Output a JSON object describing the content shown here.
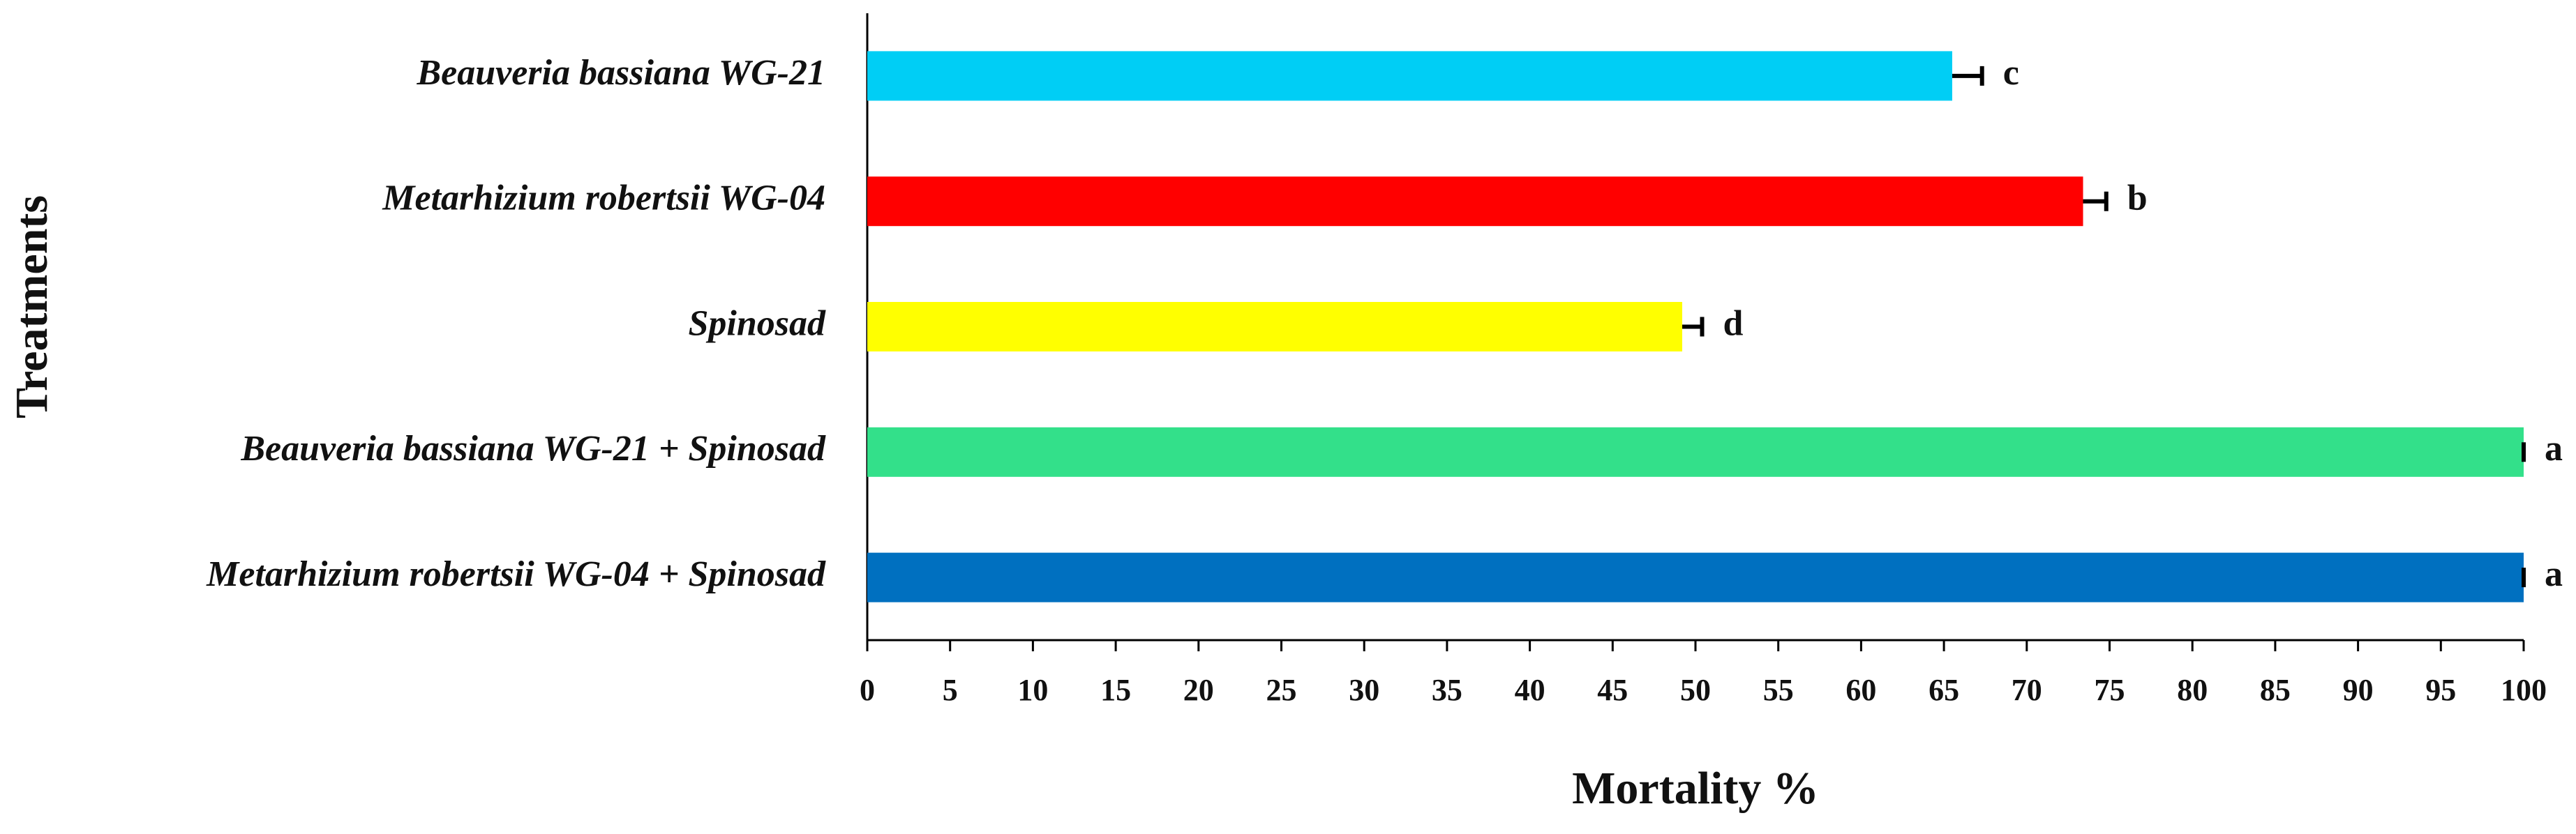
{
  "chart_data": {
    "type": "bar",
    "orientation": "horizontal",
    "categories": [
      "Beauveria bassiana WG-21",
      "Metarhizium robertsii WG-04",
      "Spinosad",
      "Beauveria bassiana WG-21 + Spinosad",
      "Metarhizium robertsii WG-04 + Spinosad"
    ],
    "values": [
      65.5,
      73.4,
      49.2,
      100,
      100
    ],
    "errors": [
      1.8,
      1.4,
      1.2,
      0,
      0
    ],
    "annotations": [
      "c",
      "b",
      "d",
      "a",
      "a"
    ],
    "colors": [
      "#00cef5",
      "#ff0000",
      "#ffff00",
      "#33e08a",
      "#0070c0"
    ],
    "xlabel": "Mortality %",
    "ylabel": "Treatments",
    "xlim": [
      0,
      100
    ],
    "xticks": [
      0,
      5,
      10,
      15,
      20,
      25,
      30,
      35,
      40,
      45,
      50,
      55,
      60,
      65,
      70,
      75,
      80,
      85,
      90,
      95,
      100
    ],
    "grid": false
  }
}
